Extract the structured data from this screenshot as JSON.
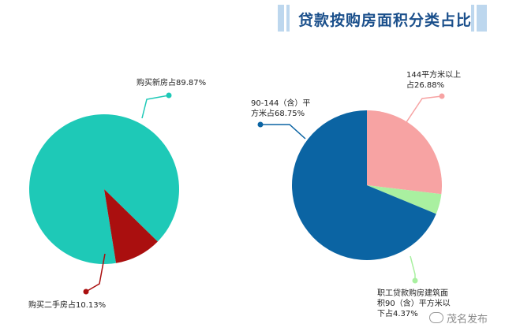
{
  "title": "贷款按购房面积分类占比",
  "watermark": "茂名发布",
  "colors": {
    "teal": "#1ec9b7",
    "darkred": "#aa0f0f",
    "blue": "#0b64a3",
    "pink": "#f7a3a3",
    "lightgreen": "#a9f0a0",
    "title": "#1a4f8b"
  },
  "chart_data": [
    {
      "type": "pie",
      "series": [
        {
          "label": [
            "购买新房占89.87%"
          ],
          "value": 89.87,
          "color": "#1ec9b7"
        },
        {
          "label": [
            "购买二手房占10.13%"
          ],
          "value": 10.13,
          "color": "#aa0f0f"
        }
      ]
    },
    {
      "type": "pie",
      "series": [
        {
          "label": [
            "144平方米以上",
            "占26.88%"
          ],
          "value": 26.88,
          "color": "#f7a3a3"
        },
        {
          "label": [
            "职工贷款购房建筑面",
            "积90（含）平方米以",
            "下占4.37%"
          ],
          "value": 4.37,
          "color": "#a9f0a0"
        },
        {
          "label": [
            "90-144（含）平",
            "方米占68.75%"
          ],
          "value": 68.75,
          "color": "#0b64a3"
        }
      ]
    }
  ]
}
